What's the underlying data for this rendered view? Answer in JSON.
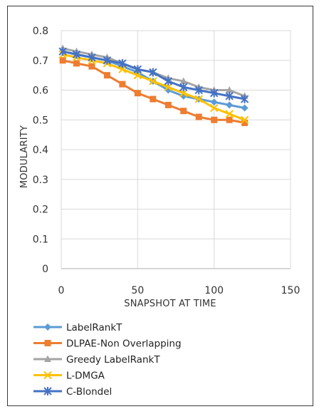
{
  "chart_data": {
    "type": "line",
    "title": "",
    "xlabel": "SNAPSHOT AT TIME",
    "ylabel": "MODULARITY",
    "xlim": [
      0,
      150
    ],
    "ylim": [
      0,
      0.8
    ],
    "xticks": [
      0,
      50,
      100,
      150
    ],
    "yticks": [
      0,
      0.1,
      0.2,
      0.3,
      0.4,
      0.5,
      0.6,
      0.7,
      0.8
    ],
    "xtick_labels": [
      "0",
      "50",
      "100",
      "150"
    ],
    "ytick_labels": [
      "0",
      "0.1",
      "0.2",
      "0.3",
      "0.4",
      "0.5",
      "0.6",
      "0.7",
      "0.8"
    ],
    "grid": true,
    "legend_position": "bottom",
    "x": [
      1,
      10,
      20,
      30,
      40,
      50,
      60,
      70,
      80,
      90,
      100,
      110,
      120
    ],
    "series": [
      {
        "name": "LabelRankT",
        "color": "#5b9bd5",
        "marker": "diamond",
        "values": [
          0.73,
          0.72,
          0.71,
          0.7,
          0.68,
          0.66,
          0.63,
          0.6,
          0.58,
          0.57,
          0.56,
          0.55,
          0.54
        ]
      },
      {
        "name": "DLPAE-Non Overlapping",
        "color": "#ed7d31",
        "marker": "square",
        "values": [
          0.7,
          0.69,
          0.68,
          0.65,
          0.62,
          0.59,
          0.57,
          0.55,
          0.53,
          0.51,
          0.5,
          0.5,
          0.49
        ]
      },
      {
        "name": "Greedy LabelRankT",
        "color": "#a5a5a5",
        "marker": "triangle",
        "values": [
          0.74,
          0.73,
          0.72,
          0.71,
          0.69,
          0.67,
          0.66,
          0.64,
          0.63,
          0.61,
          0.6,
          0.6,
          0.58
        ]
      },
      {
        "name": "L-DMGA",
        "color": "#ffc000",
        "marker": "x",
        "values": [
          0.72,
          0.71,
          0.7,
          0.69,
          0.67,
          0.65,
          0.63,
          0.61,
          0.59,
          0.57,
          0.54,
          0.52,
          0.5
        ]
      },
      {
        "name": "C-Blondel",
        "color": "#4472c4",
        "marker": "star",
        "values": [
          0.73,
          0.72,
          0.71,
          0.7,
          0.69,
          0.67,
          0.66,
          0.63,
          0.61,
          0.6,
          0.59,
          0.58,
          0.57
        ]
      }
    ]
  }
}
